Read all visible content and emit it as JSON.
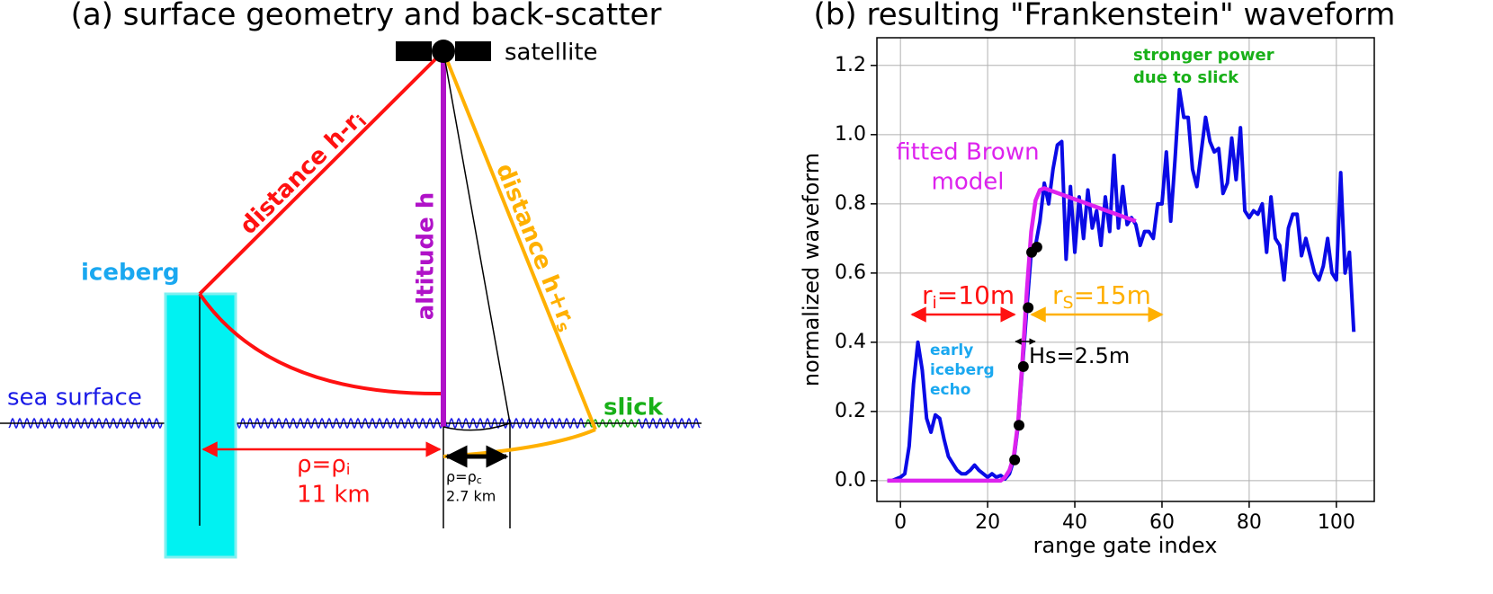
{
  "panel_a": {
    "title": "(a) surface geometry and back-scatter",
    "labels": {
      "satellite": "satellite",
      "iceberg": "iceberg",
      "sea_surface": "sea surface",
      "slick": "slick",
      "altitude": "altitude h",
      "distance_i": [
        "distance h-r",
        "i"
      ],
      "distance_s": [
        "distance h+r",
        "s"
      ],
      "rho_i": [
        "ρ=ρ",
        "i"
      ],
      "rho_i_value": "11 km",
      "rho_c": [
        "ρ=ρ",
        "c"
      ],
      "rho_c_value": "2.7 km"
    }
  },
  "chart_data": {
    "type": "line",
    "title": "(b) resulting \"Frankenstein\" waveform",
    "x_label": "range gate index",
    "y_label": "normalized waveform",
    "xlim": [
      -5.4,
      108.7
    ],
    "ylim": [
      -0.06,
      1.28
    ],
    "xticks": [
      0,
      20,
      40,
      60,
      80,
      100
    ],
    "yticks": [
      {
        "value": 0,
        "label": "0.0"
      },
      0.2,
      0.4,
      0.6,
      0.8,
      {
        "value": 1,
        "label": "1.0"
      },
      1.2
    ],
    "grid": true,
    "series": [
      {
        "type": "line",
        "color": "#0a0ae6",
        "x": [
          -3,
          -2,
          -1,
          0,
          1,
          2,
          3,
          4,
          5,
          6,
          7,
          8,
          9,
          10,
          11,
          12,
          13,
          14,
          15,
          16,
          17,
          18,
          19,
          20,
          21,
          22,
          23,
          24,
          25,
          26,
          27,
          28,
          29,
          30,
          31,
          32,
          33,
          34,
          35,
          36,
          37,
          38,
          39,
          40,
          41,
          42,
          43,
          44,
          45,
          46,
          47,
          48,
          49,
          50,
          51,
          52,
          53,
          54,
          55,
          56,
          57,
          58,
          59,
          60,
          61,
          62,
          63,
          64,
          65,
          66,
          67,
          68,
          69,
          70,
          71,
          72,
          73,
          74,
          75,
          76,
          77,
          78,
          79,
          80,
          81,
          82,
          83,
          84,
          85,
          86,
          87,
          88,
          89,
          90,
          91,
          92,
          93,
          94,
          95,
          96,
          97,
          98,
          99,
          100,
          101,
          102,
          103,
          104
        ],
        "values": [
          0,
          0,
          0.005,
          0.01,
          0.02,
          0.1,
          0.28,
          0.4,
          0.32,
          0.18,
          0.14,
          0.19,
          0.18,
          0.12,
          0.07,
          0.05,
          0.03,
          0.02,
          0.02,
          0.03,
          0.045,
          0.03,
          0.02,
          0.01,
          0.02,
          0.01,
          0.015,
          0.005,
          0.02,
          0.06,
          0.16,
          0.33,
          0.5,
          0.66,
          0.68,
          0.75,
          0.86,
          0.8,
          0.9,
          0.97,
          0.98,
          0.64,
          0.85,
          0.66,
          0.82,
          0.7,
          0.84,
          0.73,
          0.78,
          0.68,
          0.82,
          0.72,
          0.94,
          0.73,
          0.85,
          0.74,
          0.76,
          0.74,
          0.68,
          0.72,
          0.72,
          0.7,
          0.8,
          0.8,
          0.95,
          0.75,
          0.93,
          1.13,
          1.05,
          1.05,
          0.9,
          0.85,
          0.95,
          1.05,
          0.98,
          0.95,
          0.96,
          0.83,
          0.86,
          0.99,
          0.87,
          1.02,
          0.78,
          0.76,
          0.78,
          0.77,
          0.8,
          0.66,
          0.82,
          0.7,
          0.68,
          0.58,
          0.73,
          0.77,
          0.77,
          0.65,
          0.7,
          0.65,
          0.6,
          0.58,
          0.62,
          0.7,
          0.6,
          0.58,
          0.89,
          0.6,
          0.66,
          0.43
        ]
      },
      {
        "type": "line",
        "color": "#dd22ee",
        "x": [
          -3,
          23,
          24,
          25,
          26,
          27,
          28,
          29,
          30,
          31,
          32,
          33,
          54
        ],
        "values": [
          0,
          0,
          0.01,
          0.03,
          0.07,
          0.17,
          0.35,
          0.55,
          0.72,
          0.81,
          0.84,
          0.845,
          0.75
        ]
      },
      {
        "type": "scatter",
        "color": "#000000",
        "x": [
          26.2,
          27.2,
          28.2,
          29.3,
          30.1,
          31.3
        ],
        "values": [
          0.06,
          0.16,
          0.33,
          0.5,
          0.66,
          0.675
        ]
      }
    ],
    "annotations": {
      "ri": [
        "r",
        "i",
        "=10m"
      ],
      "rs": [
        "r",
        "S",
        "=15m"
      ],
      "hs": "Hs=2.5m",
      "brown": [
        "fitted Brown",
        "model"
      ],
      "early": [
        "early",
        "iceberg",
        "echo"
      ],
      "stronger": [
        "stronger power",
        "due to slick"
      ]
    }
  }
}
